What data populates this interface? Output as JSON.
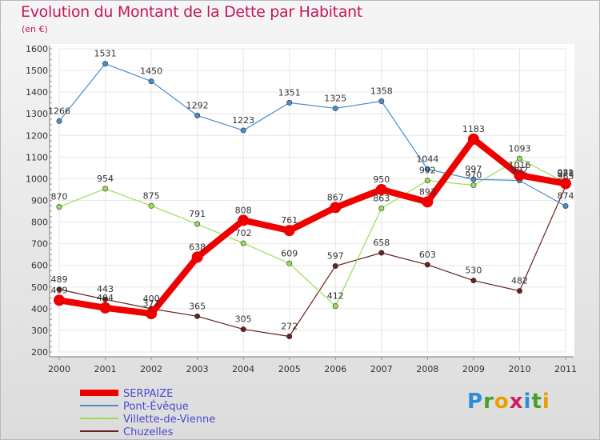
{
  "chart_data": {
    "type": "line",
    "title": "Evolution du Montant de la Dette par Habitant",
    "subtitle": "(en €)",
    "categories": [
      "2000",
      "2001",
      "2002",
      "2003",
      "2004",
      "2005",
      "2006",
      "2007",
      "2008",
      "2009",
      "2010",
      "2011"
    ],
    "ylim": [
      200,
      1600
    ],
    "yticks": [
      200,
      300,
      400,
      500,
      600,
      700,
      800,
      900,
      1000,
      1100,
      1200,
      1300,
      1400,
      1500,
      1600
    ],
    "grid": true,
    "legend_position": "bottom-left",
    "series": [
      {
        "name": "Chuzelles",
        "color": "#6b1f1f",
        "values": [
          489,
          443,
          400,
          365,
          305,
          272,
          597,
          658,
          603,
          530,
          482,
          965
        ]
      },
      {
        "name": "Villette-de-Vienne",
        "color": "#99dd55",
        "values": [
          870,
          954,
          875,
          791,
          702,
          609,
          412,
          863,
          992,
          970,
          1093,
          981
        ]
      },
      {
        "name": "Pont-Évêque",
        "color": "#4a8ccc",
        "values": [
          1266,
          1531,
          1450,
          1292,
          1223,
          1351,
          1325,
          1358,
          1044,
          997,
          992,
          874
        ]
      },
      {
        "name": "SERPAIZE",
        "color": "#ee0000",
        "values": [
          439,
          404,
          377,
          638,
          808,
          761,
          867,
          950,
          893,
          1183,
          1016,
          978
        ]
      }
    ]
  },
  "legend": {
    "items": [
      {
        "name": "SERPAIZE",
        "color": "#ee0000"
      },
      {
        "name": "Pont-Évêque",
        "color": "#4a8ccc"
      },
      {
        "name": "Villette-de-Vienne",
        "color": "#99dd55"
      },
      {
        "name": "Chuzelles",
        "color": "#6b1f1f"
      }
    ]
  },
  "logo": {
    "letters": [
      "P",
      "r",
      "o",
      "x",
      "i",
      "t",
      "i"
    ],
    "colors": [
      "#2a8fd6",
      "#4a9e2a",
      "#e8a000",
      "#d81b60",
      "#2a8fd6",
      "#4a9e2a",
      "#e8a000"
    ]
  }
}
